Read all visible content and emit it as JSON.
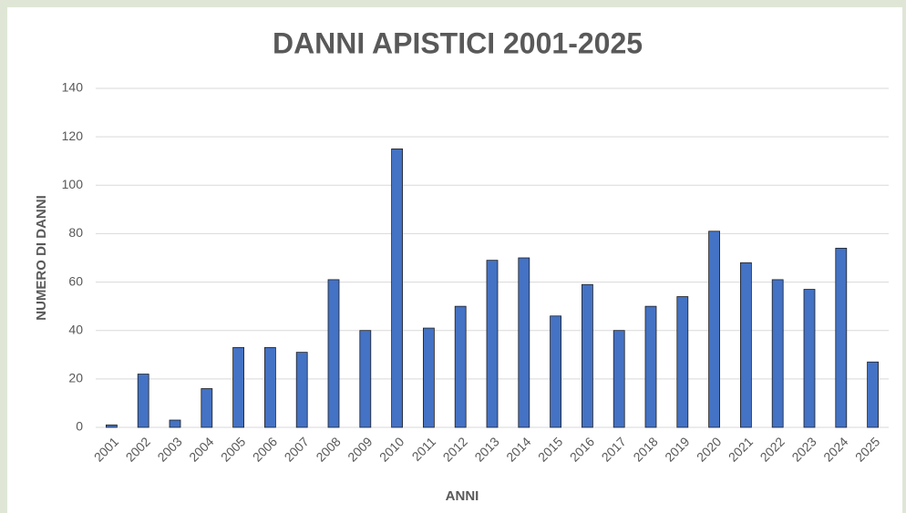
{
  "chart_data": {
    "type": "bar",
    "title": "DANNI APISTICI 2001-2025",
    "x_label": "ANNI",
    "y_label": "NUMERO DI DANNI",
    "categories": [
      "2001",
      "2002",
      "2003",
      "2004",
      "2005",
      "2006",
      "2007",
      "2008",
      "2009",
      "2010",
      "2011",
      "2012",
      "2013",
      "2014",
      "2015",
      "2016",
      "2017",
      "2018",
      "2019",
      "2020",
      "2021",
      "2022",
      "2023",
      "2024",
      "2025"
    ],
    "values": [
      1,
      22,
      3,
      16,
      33,
      33,
      31,
      61,
      40,
      115,
      41,
      50,
      69,
      70,
      46,
      59,
      40,
      50,
      54,
      81,
      68,
      61,
      57,
      74,
      27
    ],
    "color": "#4472c4",
    "ylim": [
      0,
      140
    ],
    "yticks": [
      0,
      20,
      40,
      60,
      80,
      100,
      120,
      140
    ],
    "grid": true
  }
}
